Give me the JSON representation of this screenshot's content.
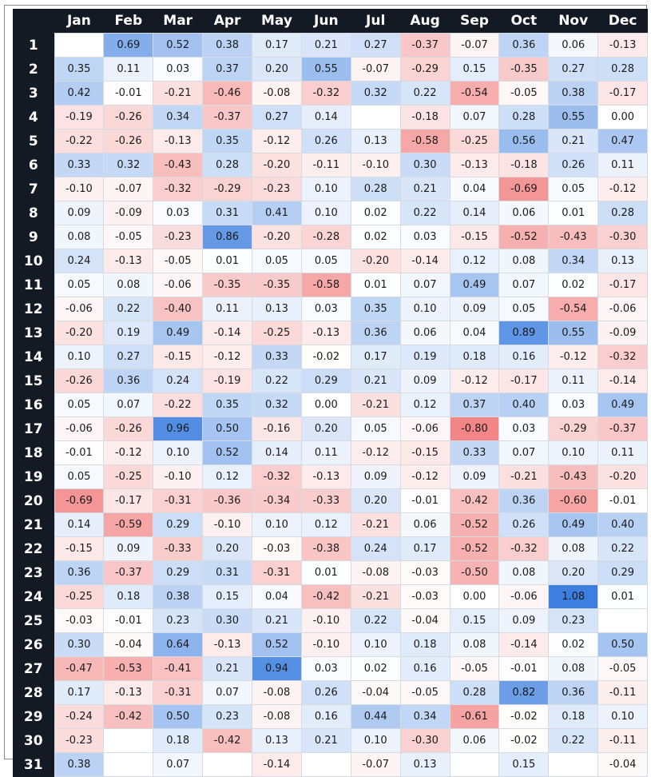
{
  "chart_data": {
    "type": "heatmap",
    "columns": [
      "Jan",
      "Feb",
      "Mar",
      "Apr",
      "May",
      "Jun",
      "Jul",
      "Aug",
      "Sep",
      "Oct",
      "Nov",
      "Dec"
    ],
    "rows": [
      "1",
      "2",
      "3",
      "4",
      "5",
      "6",
      "7",
      "8",
      "9",
      "10",
      "11",
      "12",
      "13",
      "14",
      "15",
      "16",
      "17",
      "18",
      "19",
      "20",
      "21",
      "22",
      "23",
      "24",
      "25",
      "26",
      "27",
      "28",
      "29",
      "30",
      "31"
    ],
    "values": [
      [
        null,
        0.69,
        0.52,
        0.38,
        0.17,
        0.21,
        0.27,
        -0.37,
        -0.07,
        0.36,
        0.06,
        -0.13
      ],
      [
        0.35,
        0.11,
        0.03,
        0.37,
        0.2,
        0.55,
        -0.07,
        -0.29,
        0.15,
        -0.35,
        0.27,
        0.28
      ],
      [
        0.42,
        -0.01,
        -0.21,
        -0.46,
        -0.08,
        -0.32,
        0.32,
        0.22,
        -0.54,
        -0.05,
        0.38,
        -0.17
      ],
      [
        -0.19,
        -0.26,
        0.34,
        -0.37,
        0.27,
        0.14,
        null,
        -0.18,
        0.07,
        0.28,
        0.55,
        0.0
      ],
      [
        -0.22,
        -0.26,
        -0.13,
        0.35,
        -0.12,
        0.26,
        0.13,
        -0.58,
        -0.25,
        0.56,
        0.21,
        0.47
      ],
      [
        0.33,
        0.32,
        -0.43,
        0.28,
        -0.2,
        -0.11,
        -0.1,
        0.3,
        -0.13,
        -0.18,
        0.26,
        0.11
      ],
      [
        -0.1,
        -0.07,
        -0.32,
        -0.29,
        -0.23,
        0.1,
        0.28,
        0.21,
        0.04,
        -0.69,
        0.05,
        -0.12
      ],
      [
        0.09,
        -0.09,
        0.03,
        0.31,
        0.41,
        0.1,
        0.02,
        0.22,
        0.14,
        0.06,
        0.01,
        0.28
      ],
      [
        0.08,
        -0.05,
        -0.23,
        0.86,
        -0.2,
        -0.28,
        0.02,
        0.03,
        -0.15,
        -0.52,
        -0.43,
        -0.3
      ],
      [
        0.24,
        -0.13,
        -0.05,
        0.01,
        0.05,
        0.05,
        -0.2,
        -0.14,
        0.12,
        0.08,
        0.34,
        0.13
      ],
      [
        0.05,
        0.08,
        -0.06,
        -0.35,
        -0.35,
        -0.58,
        0.01,
        0.07,
        0.49,
        0.07,
        0.02,
        -0.17
      ],
      [
        -0.06,
        0.22,
        -0.4,
        0.11,
        0.13,
        0.03,
        0.35,
        0.1,
        0.09,
        0.05,
        -0.54,
        -0.06
      ],
      [
        -0.2,
        0.19,
        0.49,
        -0.14,
        -0.25,
        -0.13,
        0.36,
        0.06,
        0.04,
        0.89,
        0.55,
        -0.09
      ],
      [
        0.1,
        0.27,
        -0.15,
        -0.12,
        0.33,
        -0.02,
        0.17,
        0.19,
        0.18,
        0.16,
        -0.12,
        -0.32
      ],
      [
        -0.26,
        0.36,
        0.24,
        -0.19,
        0.22,
        0.29,
        0.21,
        0.09,
        -0.12,
        -0.17,
        0.11,
        -0.14
      ],
      [
        0.05,
        0.07,
        -0.22,
        0.35,
        0.32,
        0.0,
        -0.21,
        0.12,
        0.37,
        0.4,
        0.03,
        0.49
      ],
      [
        -0.06,
        -0.26,
        0.96,
        0.5,
        -0.16,
        0.2,
        0.05,
        -0.06,
        -0.8,
        0.03,
        -0.29,
        -0.37
      ],
      [
        -0.01,
        -0.12,
        0.1,
        0.52,
        0.14,
        0.11,
        -0.12,
        -0.15,
        0.33,
        0.07,
        0.1,
        0.11
      ],
      [
        0.05,
        -0.25,
        -0.1,
        0.12,
        -0.32,
        -0.13,
        0.09,
        -0.12,
        0.09,
        -0.21,
        -0.43,
        -0.2
      ],
      [
        -0.69,
        -0.17,
        -0.31,
        -0.36,
        -0.34,
        -0.33,
        0.2,
        -0.01,
        -0.42,
        0.36,
        -0.6,
        -0.01
      ],
      [
        0.14,
        -0.59,
        0.29,
        -0.1,
        0.1,
        0.12,
        -0.21,
        0.06,
        -0.52,
        0.26,
        0.49,
        0.4
      ],
      [
        -0.15,
        0.09,
        -0.33,
        0.2,
        -0.03,
        -0.38,
        0.24,
        0.17,
        -0.52,
        -0.32,
        0.08,
        0.22
      ],
      [
        0.36,
        -0.37,
        0.29,
        0.31,
        -0.31,
        0.01,
        -0.08,
        -0.03,
        -0.5,
        0.08,
        0.2,
        0.29
      ],
      [
        -0.25,
        0.18,
        0.38,
        0.15,
        0.04,
        -0.42,
        -0.21,
        -0.03,
        0.0,
        -0.06,
        1.08,
        0.01
      ],
      [
        -0.03,
        -0.01,
        0.23,
        0.3,
        0.21,
        -0.1,
        0.22,
        -0.04,
        0.15,
        0.09,
        0.23,
        null
      ],
      [
        0.3,
        -0.04,
        0.64,
        -0.13,
        0.52,
        -0.1,
        0.1,
        0.18,
        0.08,
        -0.14,
        0.02,
        0.5
      ],
      [
        -0.47,
        -0.53,
        -0.41,
        0.21,
        0.94,
        0.03,
        0.02,
        0.16,
        -0.05,
        -0.01,
        0.08,
        -0.05
      ],
      [
        0.17,
        -0.13,
        -0.31,
        0.07,
        -0.08,
        0.26,
        -0.04,
        -0.05,
        0.28,
        0.82,
        0.36,
        -0.11
      ],
      [
        -0.24,
        -0.42,
        0.5,
        0.23,
        -0.08,
        0.16,
        0.44,
        0.34,
        -0.61,
        -0.02,
        0.18,
        0.1
      ],
      [
        -0.23,
        null,
        0.18,
        -0.42,
        0.13,
        0.21,
        0.1,
        -0.3,
        0.06,
        -0.02,
        0.22,
        -0.11
      ],
      [
        0.38,
        null,
        0.07,
        null,
        -0.14,
        null,
        -0.07,
        0.13,
        null,
        0.15,
        null,
        -0.04
      ]
    ],
    "colors": {
      "positive_max": "#3d7fe0",
      "negative_max": "#ee5b5b",
      "neutral": "#ffffff",
      "header_background": "#131a24",
      "header_text": "#ffffff"
    },
    "color_scale_max": 1.08
  }
}
